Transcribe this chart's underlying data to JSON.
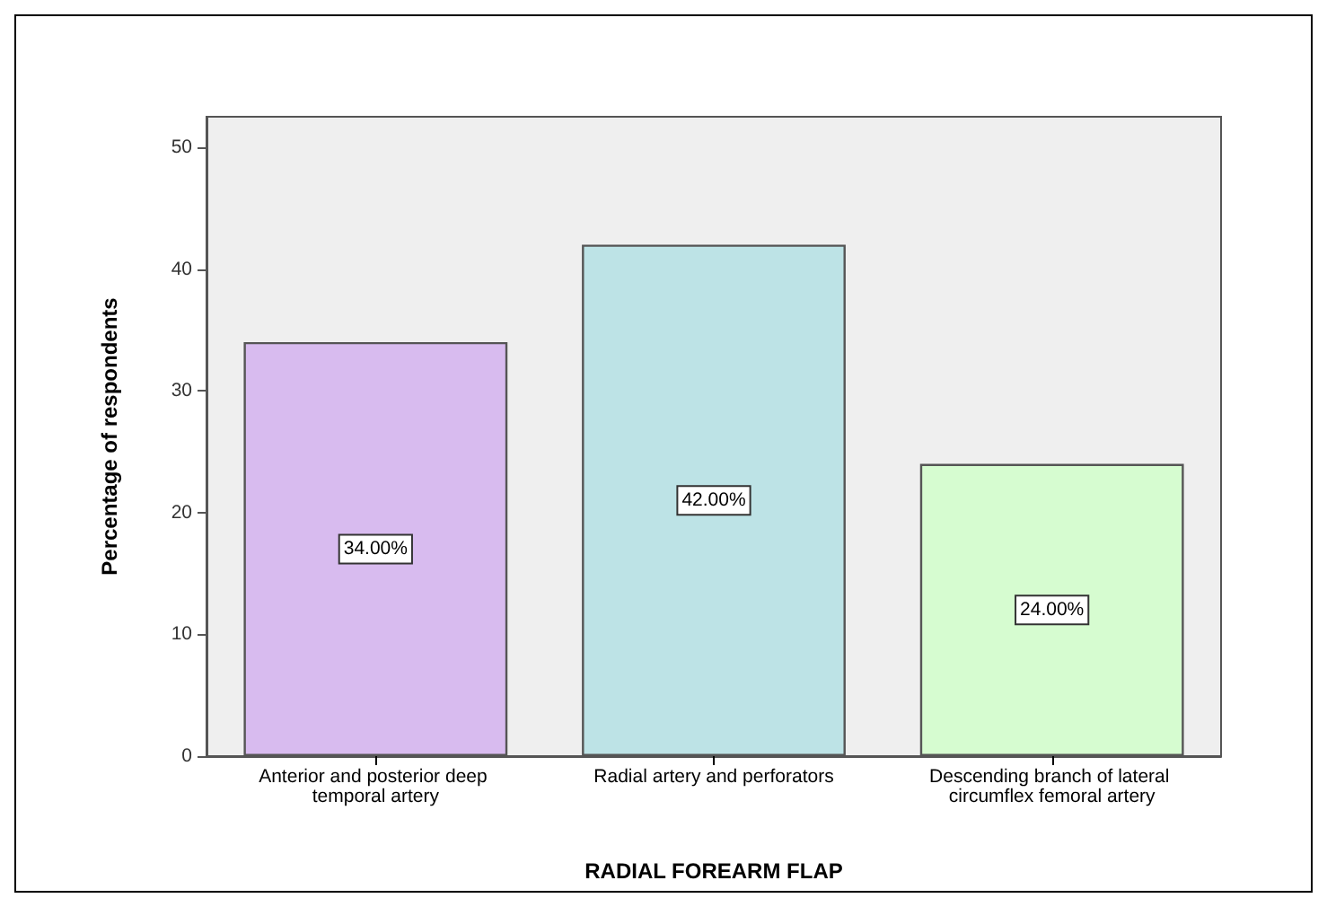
{
  "chart_data": {
    "type": "bar",
    "xlabel": "RADIAL FOREARM FLAP",
    "ylabel": "Percentage of respondents",
    "categories": [
      "Anterior and posterior deep temporal artery",
      "Radial artery and perforators",
      "Descending branch of lateral circumflex femoral artery"
    ],
    "values": [
      34,
      42,
      24
    ],
    "value_labels": [
      "34.00%",
      "42.00%",
      "24.00%"
    ],
    "colors": [
      "#d8bbef",
      "#bde3e6",
      "#d6fcd0"
    ],
    "ylim": [
      0,
      52.5
    ],
    "yticks": [
      0,
      10,
      20,
      30,
      40,
      50
    ],
    "grid": false
  }
}
